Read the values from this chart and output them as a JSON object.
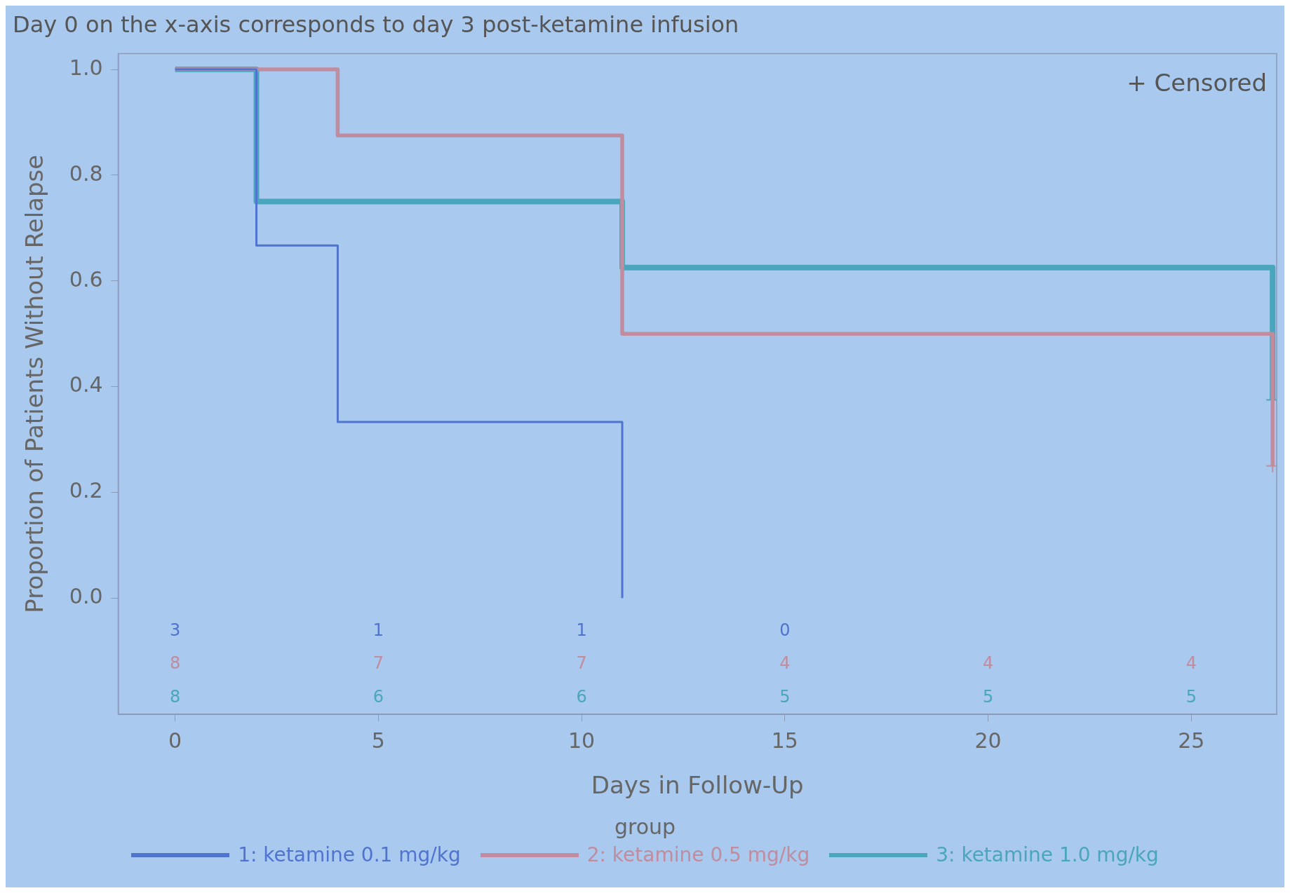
{
  "chart_data": {
    "type": "step",
    "title": "Day 0 on the x-axis corresponds to day 3 post-ketamine infusion",
    "xlabel": "Days in Follow-Up",
    "ylabel": "Proportion of Patients Without Relapse",
    "legend_title": "group",
    "legend": "bottom",
    "grid": false,
    "xlim": [
      -1.4,
      27.1
    ],
    "xticks": [
      0,
      5,
      10,
      15,
      20,
      25
    ],
    "ylim": [
      -0.22,
      1.03
    ],
    "yticks": [
      {
        "value": 0,
        "label": "0.0"
      },
      0.2,
      0.4,
      0.6,
      0.8,
      {
        "value": 1,
        "label": "1.0"
      }
    ],
    "series": [
      {
        "name": "1: ketamine 0.1 mg/kg",
        "color": "#4f74d0",
        "marker": "none",
        "x": [
          0,
          2,
          4,
          11
        ],
        "values": [
          1,
          0.667,
          0.333,
          0
        ]
      },
      {
        "name": "2: ketamine 0.5 mg/kg",
        "color": "#c08c9e",
        "marker": "none",
        "x": [
          0,
          4,
          11,
          27
        ],
        "values": [
          1,
          0.875,
          0.5,
          0.25
        ]
      },
      {
        "name": "3: ketamine 1.0 mg/kg",
        "color": "#4aa6bc",
        "marker": "none",
        "x": [
          0,
          2,
          11,
          27
        ],
        "values": [
          1,
          0.75,
          0.625,
          0.375
        ]
      },
      {
        "type": "scatter",
        "color": "#c08c9e",
        "marker": "cross",
        "x": [
          27
        ],
        "values": [
          0.25
        ]
      },
      {
        "type": "scatter",
        "color": "#4aa6bc",
        "marker": "cross",
        "x": [
          27
        ],
        "values": [
          0.375
        ]
      }
    ],
    "annotations": [
      "+ Censored",
      "3",
      "1",
      "1",
      "0",
      "8",
      "7",
      "7",
      "4",
      "4",
      "4",
      "8",
      "6",
      "6",
      "5",
      "5",
      "5"
    ]
  }
}
